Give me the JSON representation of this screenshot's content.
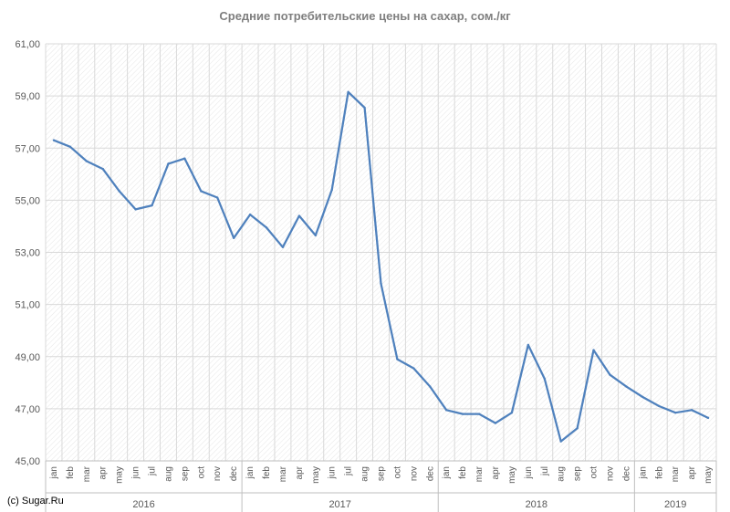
{
  "credit": "(c) Sugar.Ru",
  "colors": {
    "line": "#4f81bd",
    "grid": "#d9d9d9",
    "axis": "#bfbfbf",
    "text": "#595959",
    "title": "#7f7f7f"
  },
  "chart_data": {
    "type": "line",
    "title": "Средние потребительские цены на сахар, сом./кг",
    "xlabel": "",
    "ylabel": "",
    "ylim": [
      45,
      61
    ],
    "y_ticks": [
      "45,00",
      "47,00",
      "49,00",
      "51,00",
      "53,00",
      "55,00",
      "57,00",
      "59,00",
      "61,00"
    ],
    "grid": "horizontal and vertical, hatched plot area",
    "legend": "none",
    "years": [
      {
        "label": "2016",
        "months": 12
      },
      {
        "label": "2017",
        "months": 12
      },
      {
        "label": "2018",
        "months": 12
      },
      {
        "label": "2019",
        "months": 5
      }
    ],
    "categories": [
      "jan",
      "feb",
      "mar",
      "apr",
      "may",
      "jun",
      "jul",
      "aug",
      "sep",
      "oct",
      "nov",
      "dec",
      "jan",
      "feb",
      "mar",
      "apr",
      "may",
      "jun",
      "jul",
      "aug",
      "sep",
      "oct",
      "nov",
      "dec",
      "jan",
      "feb",
      "mar",
      "apr",
      "may",
      "jun",
      "jul",
      "aug",
      "sep",
      "oct",
      "nov",
      "dec",
      "jan",
      "feb",
      "mar",
      "apr",
      "may"
    ],
    "series": [
      {
        "values": [
          57.3,
          57.05,
          56.5,
          56.2,
          55.35,
          54.65,
          54.8,
          56.4,
          56.6,
          55.35,
          55.1,
          53.55,
          54.45,
          53.95,
          53.2,
          54.4,
          53.65,
          55.4,
          59.15,
          58.55,
          51.8,
          48.9,
          48.55,
          47.85,
          46.95,
          46.8,
          46.8,
          46.45,
          46.85,
          49.45,
          48.15,
          45.75,
          46.25,
          49.25,
          48.3,
          47.85,
          47.45,
          47.1,
          46.85,
          46.95,
          46.65
        ]
      }
    ]
  }
}
